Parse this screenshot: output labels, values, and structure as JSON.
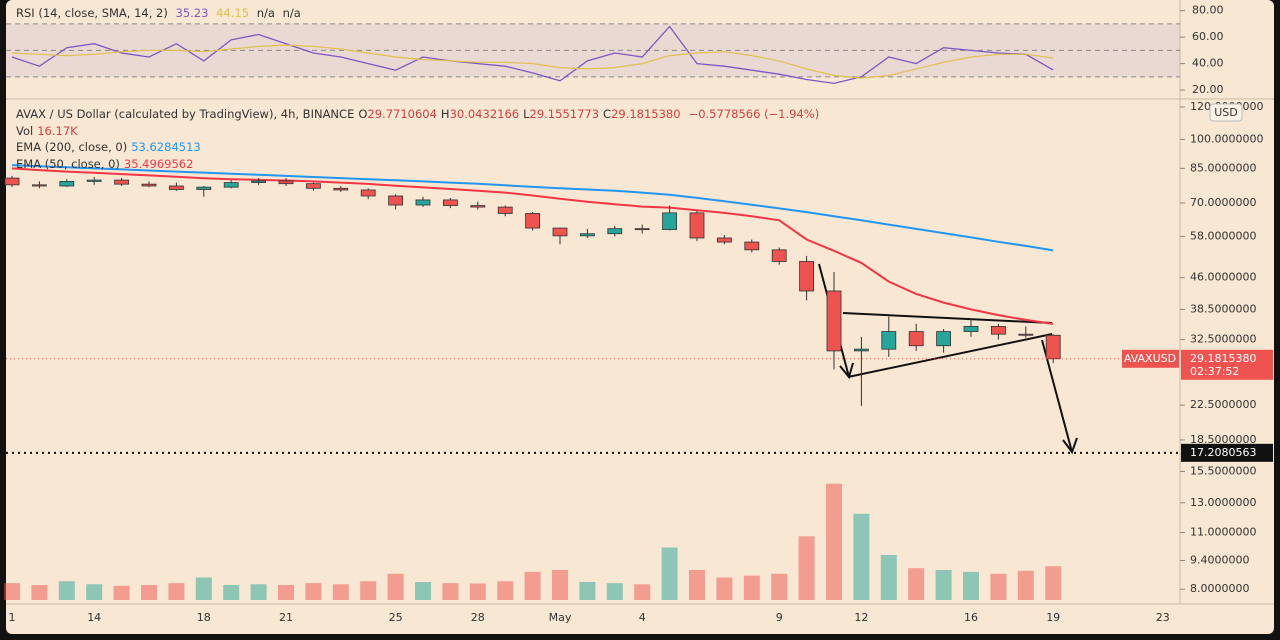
{
  "chart_data": {
    "type": "candlestick",
    "symbol_title": "AVAX / US Dollar (calculated by TradingView), 4h, BINANCE",
    "ohlc_legend": [
      {
        "key": "O",
        "text": "29.7710604"
      },
      {
        "key": "H",
        "text": "30.0432166"
      },
      {
        "key": "L",
        "text": "29.1551773"
      },
      {
        "key": "C",
        "text": "29.1815380"
      }
    ],
    "change_text": "−0.5778566 (−1.94%)",
    "categories": [
      "1",
      null,
      null,
      "14",
      null,
      null,
      null,
      "18",
      null,
      null,
      "21",
      null,
      null,
      null,
      "25",
      null,
      null,
      "28",
      null,
      null,
      "May",
      null,
      null,
      "4",
      null,
      null,
      null,
      null,
      "9",
      null,
      null,
      "12",
      null,
      null,
      null,
      "16",
      null,
      null,
      "19",
      null,
      null,
      null,
      "23"
    ],
    "open": [
      80.5,
      77.5,
      77,
      79,
      79.6,
      77.8,
      77,
      75.5,
      76.5,
      78.5,
      79.2,
      78,
      76,
      75.3,
      72.8,
      69.2,
      71.2,
      69,
      68.4,
      66,
      60.8,
      58.2,
      58.9,
      60.6,
      60.3,
      66.2,
      57.5,
      56.2,
      53.8,
      50.4,
      42.7,
      30.5,
      30.8,
      34,
      31.4,
      34,
      35,
      33.5,
      33.3,
      null,
      null,
      null,
      null
    ],
    "high": [
      81.5,
      79,
      80,
      81,
      80.5,
      79,
      78.5,
      77,
      79.5,
      80.5,
      80.5,
      78.5,
      77,
      76,
      73.5,
      72.5,
      72,
      70.5,
      69,
      66.5,
      61,
      60.5,
      61.5,
      62,
      69,
      67,
      58.5,
      57,
      54.5,
      52,
      47.5,
      33,
      37,
      35.5,
      34.5,
      36.5,
      35.5,
      35,
      33.5,
      null,
      null,
      null,
      null
    ],
    "low": [
      76.5,
      76,
      76.5,
      77.5,
      77,
      76.5,
      75,
      72.5,
      76,
      77.5,
      77,
      75,
      74.5,
      71.5,
      67.5,
      68.5,
      68,
      67.5,
      65,
      60,
      55.5,
      57.5,
      58,
      59,
      60,
      56.5,
      55.5,
      53,
      49.5,
      40.5,
      27.5,
      22.4,
      29.5,
      30.5,
      30.2,
      33,
      32.5,
      32.8,
      28.5,
      null,
      null,
      null,
      null
    ],
    "close": [
      77.5,
      77,
      79,
      79.6,
      77.8,
      77,
      75.5,
      76.5,
      78.5,
      79.2,
      78,
      76,
      75.3,
      72.8,
      69.2,
      71.2,
      69,
      68.4,
      66,
      60.8,
      58.2,
      58.9,
      60.6,
      60.3,
      66.2,
      57.5,
      56.2,
      53.8,
      50.4,
      42.7,
      30.5,
      30.8,
      34,
      31.4,
      34,
      35,
      33.5,
      33.3,
      29.181538,
      null,
      null,
      null,
      null
    ],
    "up_color": "#26a69a",
    "down_color": "#ef5350",
    "ylim": [
      7.53,
      124.8
    ],
    "log_scale": true,
    "yticks": [
      {
        "value": 120,
        "label": "120.0000000"
      },
      {
        "value": 100,
        "label": "100.0000000"
      },
      {
        "value": 85,
        "label": "85.0000000"
      },
      {
        "value": 70,
        "label": "70.0000000"
      },
      {
        "value": 58,
        "label": "58.0000000"
      },
      {
        "value": 46,
        "label": "46.0000000"
      },
      {
        "value": 38.5,
        "label": "38.5000000"
      },
      {
        "value": 32.5,
        "label": "32.5000000"
      },
      {
        "value": 22.5,
        "label": "22.5000000"
      },
      {
        "value": 18.5,
        "label": "18.5000000"
      },
      {
        "value": 15.5,
        "label": "15.5000000"
      },
      {
        "value": 13,
        "label": "13.0000000"
      },
      {
        "value": 11,
        "label": "11.0000000"
      },
      {
        "value": 9.4,
        "label": "9.4000000"
      },
      {
        "value": 8,
        "label": "8.0000000"
      }
    ],
    "currency": "USD",
    "symbol_tag": "AVAXUSD",
    "last_price_label": "29.1815380",
    "countdown": "02:37:52",
    "target": 17.2080563,
    "volume": {
      "name": "Vol",
      "value_label": "16.17K",
      "ylim": [
        0,
        400
      ],
      "values": [
        45,
        40,
        50,
        42,
        38,
        40,
        45,
        60,
        40,
        42,
        40,
        45,
        42,
        50,
        70,
        48,
        45,
        44,
        50,
        75,
        80,
        48,
        45,
        42,
        140,
        80,
        60,
        65,
        70,
        170,
        310,
        230,
        120,
        85,
        80,
        75,
        70,
        78,
        90,
        null,
        null,
        null,
        null
      ]
    },
    "series": [
      {
        "name": "EMA (200, close, 0)",
        "color": "#2196f3",
        "values": [
          86.6,
          86.0,
          85.5,
          85.0,
          84.5,
          84.0,
          83.5,
          83.0,
          82.5,
          82.0,
          81.5,
          81.0,
          80.5,
          80.0,
          79.5,
          79.0,
          78.5,
          78.0,
          77.3,
          76.6,
          76.0,
          75.5,
          75.0,
          74.2,
          73.3,
          72.0,
          70.7,
          69.3,
          67.9,
          66.5,
          65.0,
          63.5,
          62.0,
          60.5,
          59.1,
          57.7,
          56.3,
          55.0,
          53.6284513,
          null,
          null,
          null,
          null
        ]
      },
      {
        "name": "EMA (50, close, 0)",
        "color": "#f23645",
        "values": [
          85,
          84.2,
          83.5,
          82.9,
          82.3,
          81.7,
          81.1,
          80.4,
          80.0,
          79.7,
          79.4,
          79.0,
          78.5,
          77.9,
          77.1,
          76.4,
          75.7,
          75.0,
          74.2,
          73.0,
          71.7,
          70.5,
          69.5,
          68.6,
          68.2,
          67.2,
          66.2,
          65.0,
          63.5,
          57,
          53.5,
          50,
          45,
          42,
          40,
          38.5,
          37.3,
          36.3,
          35.4969562,
          null,
          null,
          null,
          null
        ]
      }
    ],
    "rsi": {
      "title": "RSI (14, close, SMA, 14, 2)",
      "ylim": [
        14,
        82
      ],
      "yticks": [
        {
          "value": 80,
          "label": "80.00"
        },
        {
          "value": 60,
          "label": "60.00"
        },
        {
          "value": 40,
          "label": "40.00"
        },
        {
          "value": 20,
          "label": "20.00"
        }
      ],
      "levels": [
        30,
        50,
        70
      ],
      "band_color": "#9575cd",
      "extra_labels": [
        "n/a",
        "n/a"
      ],
      "series": [
        {
          "color": "#7e57c2",
          "values": [
            45,
            38,
            52,
            55,
            48,
            45,
            55,
            42,
            58,
            62,
            55,
            48,
            45,
            40,
            35,
            45,
            42,
            40,
            38,
            33,
            27,
            42,
            48,
            45,
            68,
            40,
            38,
            35,
            32,
            28,
            25,
            30,
            45,
            40,
            52,
            50,
            48,
            47,
            35.23,
            null,
            null,
            null,
            null
          ]
        },
        {
          "color": "#e0c050",
          "values": [
            48,
            47,
            46,
            47,
            49,
            50,
            50,
            49,
            51,
            53,
            54,
            53,
            51,
            48,
            45,
            43,
            42,
            41,
            41,
            40,
            37,
            36,
            37,
            40,
            46,
            48,
            49,
            46,
            42,
            36,
            31,
            29,
            31,
            36,
            41,
            45,
            47,
            47,
            44.15,
            null,
            null,
            null,
            null
          ]
        }
      ]
    }
  }
}
